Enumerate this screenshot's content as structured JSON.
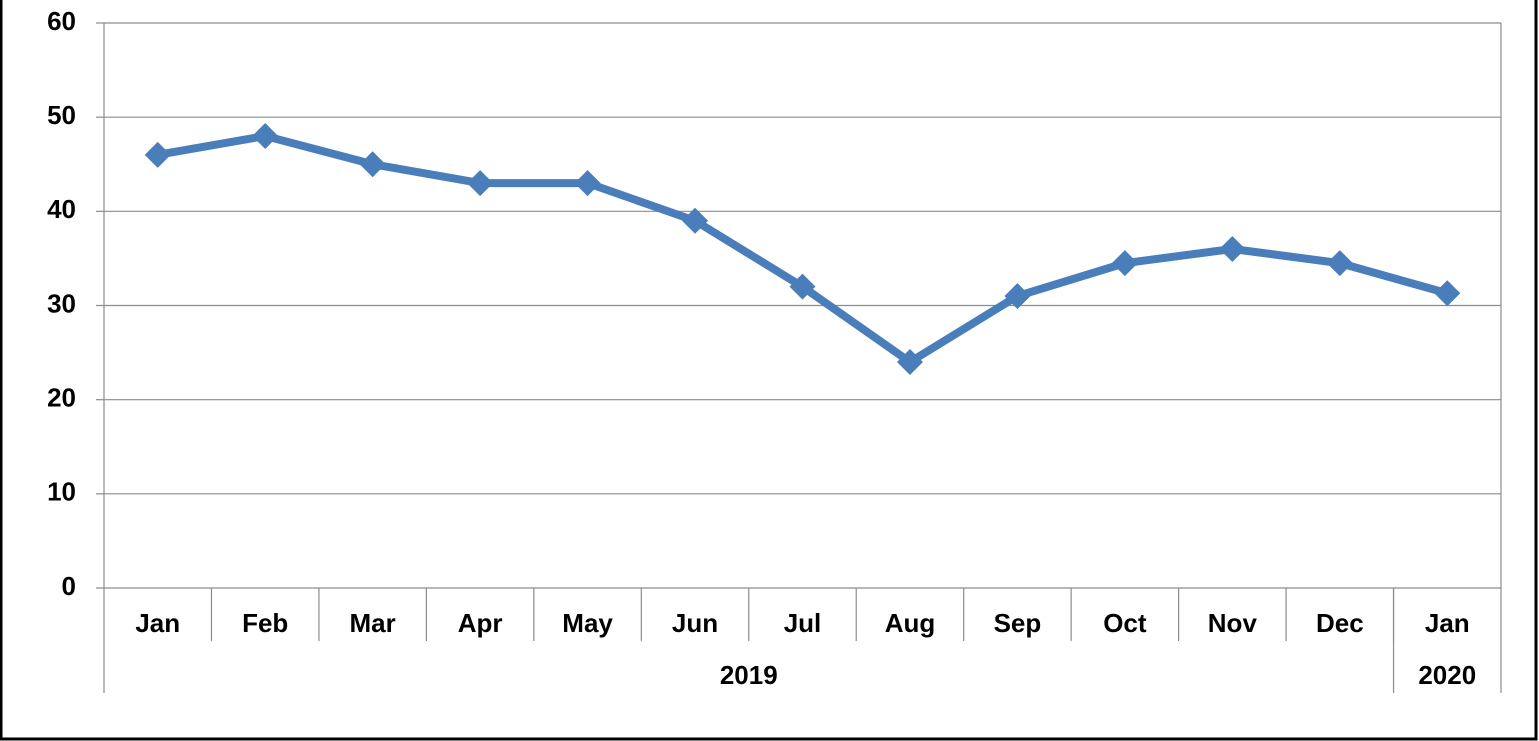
{
  "chart_data": {
    "type": "line",
    "categories": [
      "Jan",
      "Feb",
      "Mar",
      "Apr",
      "May",
      "Jun",
      "Jul",
      "Aug",
      "Sep",
      "Oct",
      "Nov",
      "Dec",
      "Jan"
    ],
    "groups": [
      {
        "label": "2019",
        "count": 12
      },
      {
        "label": "2020",
        "count": 1
      }
    ],
    "series": [
      {
        "color": "#4a7ebb",
        "values": [
          46,
          48,
          45,
          43,
          43,
          39,
          32,
          24,
          31,
          34.5,
          36,
          34.5,
          31.3
        ]
      }
    ],
    "ylim": [
      0,
      60
    ],
    "yticks": [
      0,
      10,
      20,
      30,
      40,
      50,
      60
    ],
    "grid": true
  }
}
